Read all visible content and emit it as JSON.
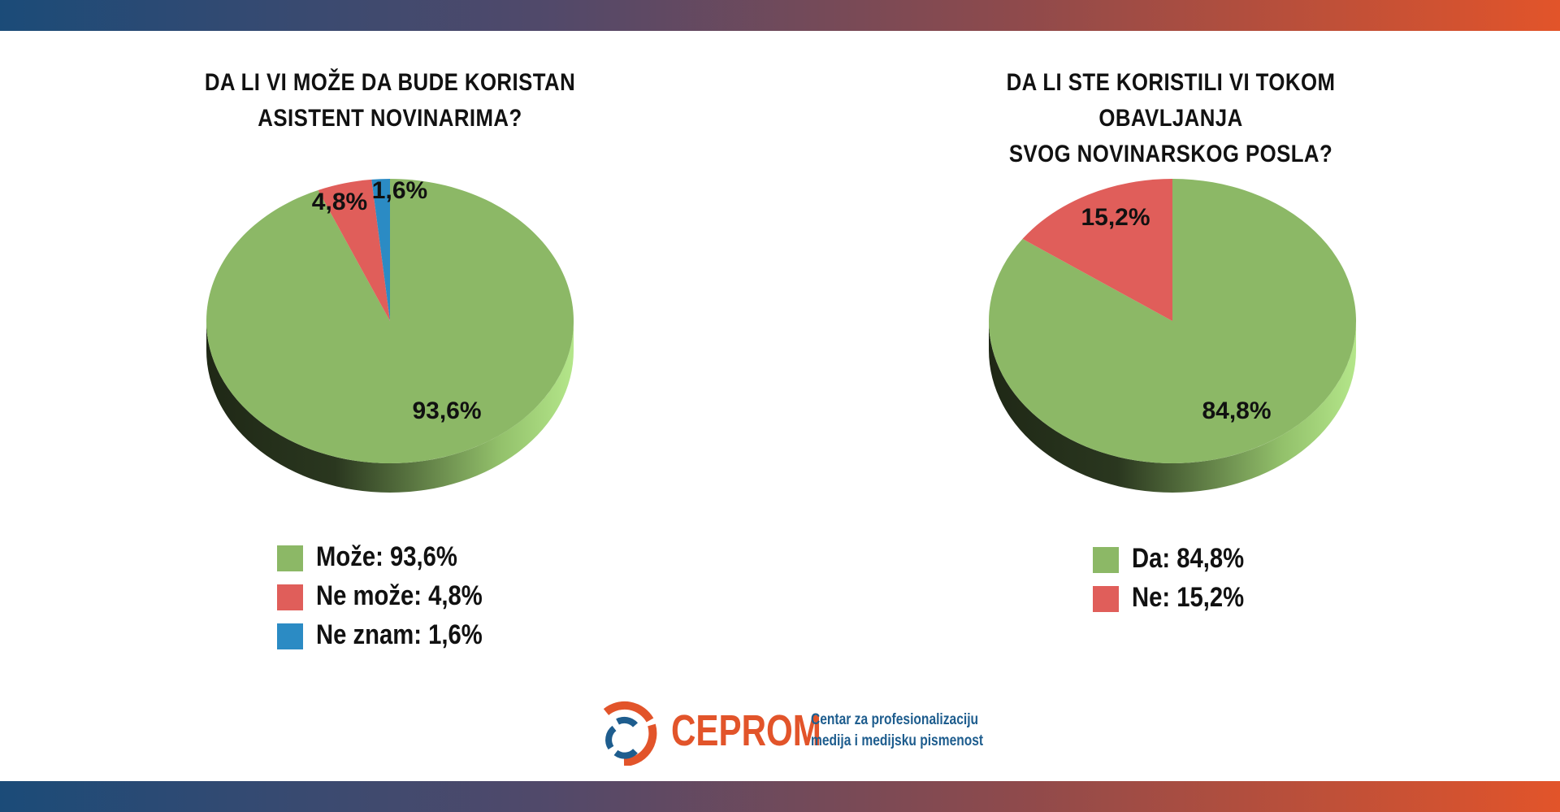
{
  "colors": {
    "green": "#8cb866",
    "red": "#e05e5a",
    "blue": "#2b8bc4",
    "brand_orange": "#e2542a",
    "brand_blue": "#1e5d8e"
  },
  "chart_data": [
    {
      "type": "pie",
      "title": "DA LI VI MOŽE DA BUDE KORISTAN ASISTENT NOVINARIMA?",
      "title_lines": [
        "DA LI VI MOŽE DA BUDE KORISTAN",
        "ASISTENT NOVINARIMA?"
      ],
      "slices": [
        {
          "label": "Može",
          "value": 93.6,
          "display": "93,6%",
          "legend": "Može: 93,6%",
          "color": "#8cb866"
        },
        {
          "label": "Ne može",
          "value": 4.8,
          "display": "4,8%",
          "legend": "Ne može: 4,8%",
          "color": "#e05e5a"
        },
        {
          "label": "Ne znam",
          "value": 1.6,
          "display": "1,6%",
          "legend": "Ne znam: 1,6%",
          "color": "#2b8bc4"
        }
      ],
      "legend_position": "bottom"
    },
    {
      "type": "pie",
      "title": "DA LI STE KORISTILI VI TOKOM OBAVLJANJA SVOG NOVINARSKOG POSLA?",
      "title_lines": [
        "DA LI STE KORISTILI VI TOKOM OBAVLJANJA",
        "SVOG NOVINARSKOG POSLA?"
      ],
      "slices": [
        {
          "label": "Da",
          "value": 84.8,
          "display": "84,8%",
          "legend": "Da: 84,8%",
          "color": "#8cb866"
        },
        {
          "label": "Ne",
          "value": 15.2,
          "display": "15,2%",
          "legend": "Ne: 15,2%",
          "color": "#e05e5a"
        }
      ],
      "legend_position": "bottom"
    }
  ],
  "logo": {
    "name": "CEPROM",
    "tagline_line1": "Centar za profesionalizaciju",
    "tagline_line2": "medija i medijsku pismenost"
  }
}
